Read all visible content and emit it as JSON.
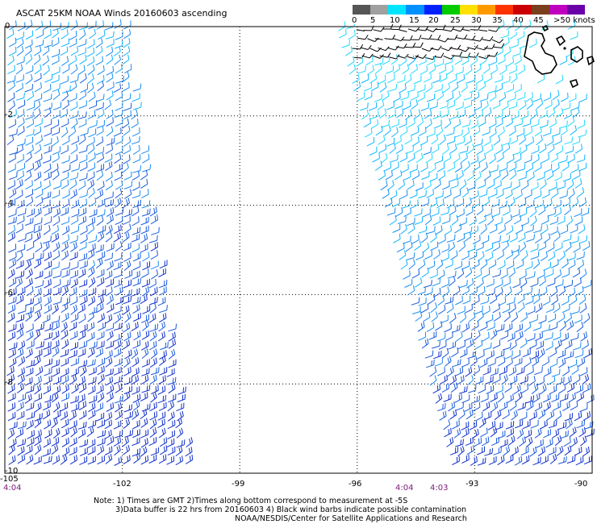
{
  "title": "ASCAT 25KM NOAA Winds 20160603 ascending",
  "colorbar": {
    "labels": [
      "0",
      "5",
      "10",
      "15",
      "20",
      "25",
      "30",
      "35",
      "40",
      "45",
      ">50 knots"
    ],
    "colors": [
      "#555555",
      "#a0a0a0",
      "#00e5ff",
      "#0090ff",
      "#0020ff",
      "#00cc00",
      "#ffe000",
      "#ff9900",
      "#ff3300",
      "#cc0000",
      "#7b3f1e",
      "#c000c0",
      "#6a00a8"
    ]
  },
  "axes": {
    "lon_labels": [
      "-105",
      "-102",
      "-99",
      "-96",
      "-93",
      "-90"
    ],
    "lat_labels": [
      "0",
      "-2",
      "-4",
      "-6",
      "-8",
      "-10"
    ]
  },
  "times": [
    "4:04",
    "4:04",
    "4:03"
  ],
  "notes": {
    "line1": "Note: 1) Times are GMT 2)Times along bottom correspond to measurement at -5S",
    "line2": "3)Data buffer is 22 hrs from 20160603 4) Black wind barbs indicate possible contamination",
    "line3": "NOAA/NESDIS/Center for Satellite Applications and Research"
  },
  "map": {
    "lon_range": [
      -105,
      -90
    ],
    "lat_range": [
      0,
      -10
    ],
    "swaths": [
      {
        "name": "west-swath",
        "top_lon_range": [
          -105,
          -101.9
        ],
        "bottom_lon_range": [
          -105,
          -100.2
        ],
        "speed_knots_north": 12,
        "speed_knots_south": 18
      },
      {
        "name": "east-swath",
        "top_lon_range": [
          -96.6,
          -90.3
        ],
        "bottom_lon_range": [
          -93.6,
          -90
        ],
        "speed_knots_north": 8,
        "speed_knots_south": 17
      }
    ],
    "contaminated_region": {
      "lon_range": [
        -96.2,
        -92.5
      ],
      "lat_range": [
        0,
        -0.7
      ],
      "barb_color": "#000000"
    },
    "land": "Galapagos Islands"
  }
}
